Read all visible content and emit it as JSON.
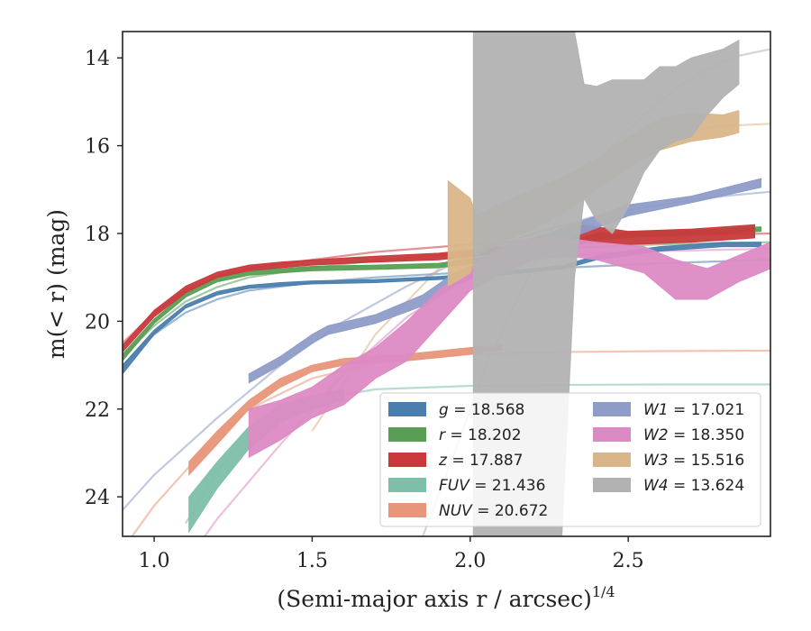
{
  "chart_data": {
    "type": "area",
    "xlabel": "(Semi-major axis r / arcsec)",
    "xlabel_sup": "1/4",
    "ylabel": "m(< r) (mag)",
    "xlim": [
      0.9,
      2.95
    ],
    "ylim": [
      24.9,
      13.4
    ],
    "y_inverted": true,
    "x_ticks": [
      1.0,
      1.5,
      2.0,
      2.5
    ],
    "x_tick_labels": [
      "1.0",
      "1.5",
      "2.0",
      "2.5"
    ],
    "y_ticks": [
      14,
      16,
      18,
      20,
      22,
      24
    ],
    "y_tick_labels": [
      "14",
      "16",
      "18",
      "20",
      "22",
      "24"
    ],
    "grid": false,
    "legend_position": "lower-right",
    "series": [
      {
        "name": "g",
        "legend_value": "18.568",
        "color": "#4c7ead",
        "band_x": [
          0.9,
          1.0,
          1.1,
          1.2,
          1.3,
          1.4,
          1.5,
          1.7,
          1.9,
          2.1,
          2.3,
          2.4,
          2.6,
          2.8,
          2.92
        ],
        "band_lower": [
          21.2,
          20.3,
          19.7,
          19.4,
          19.25,
          19.2,
          19.15,
          19.12,
          19.05,
          18.95,
          18.8,
          18.6,
          18.4,
          18.3,
          18.3
        ],
        "band_upper": [
          21.0,
          20.2,
          19.62,
          19.32,
          19.18,
          19.12,
          19.08,
          19.05,
          18.98,
          18.88,
          18.72,
          18.5,
          18.3,
          18.2,
          18.2
        ],
        "model_x": [
          0.9,
          1.0,
          1.1,
          1.2,
          1.3,
          1.5,
          1.7,
          2.0,
          2.3,
          2.6,
          2.95
        ],
        "model_y": [
          21.0,
          20.3,
          19.8,
          19.5,
          19.3,
          19.12,
          19.0,
          18.88,
          18.78,
          18.68,
          18.6
        ]
      },
      {
        "name": "r",
        "legend_value": "18.202",
        "color": "#5a9e55",
        "band_x": [
          0.9,
          1.0,
          1.1,
          1.2,
          1.3,
          1.4,
          1.5,
          1.7,
          1.9,
          2.1,
          2.3,
          2.4,
          2.6,
          2.8,
          2.92
        ],
        "band_lower": [
          20.9,
          20.05,
          19.45,
          19.1,
          18.95,
          18.9,
          18.85,
          18.82,
          18.78,
          18.6,
          18.35,
          18.15,
          18.05,
          18.0,
          17.95
        ],
        "band_upper": [
          20.75,
          19.95,
          19.35,
          19.0,
          18.85,
          18.8,
          18.75,
          18.72,
          18.68,
          18.5,
          18.25,
          18.0,
          17.95,
          17.9,
          17.85
        ],
        "model_x": [
          0.9,
          1.0,
          1.1,
          1.2,
          1.3,
          1.5,
          1.7,
          2.0,
          2.3,
          2.6,
          2.95
        ],
        "model_y": [
          20.8,
          20.1,
          19.55,
          19.22,
          19.0,
          18.78,
          18.62,
          18.45,
          18.33,
          18.25,
          18.2
        ]
      },
      {
        "name": "z",
        "legend_value": "17.887",
        "color": "#c9393c",
        "band_x": [
          0.9,
          1.0,
          1.1,
          1.2,
          1.3,
          1.4,
          1.5,
          1.7,
          1.9,
          2.1,
          2.35,
          2.5,
          2.7,
          2.9
        ],
        "band_lower": [
          20.7,
          19.9,
          19.35,
          19.0,
          18.85,
          18.78,
          18.72,
          18.65,
          18.6,
          18.45,
          18.2,
          18.25,
          18.2,
          18.1
        ],
        "band_upper": [
          20.55,
          19.75,
          19.2,
          18.88,
          18.72,
          18.65,
          18.6,
          18.52,
          18.45,
          18.3,
          17.8,
          17.95,
          17.9,
          17.8
        ],
        "model_x": [
          0.9,
          1.0,
          1.1,
          1.2,
          1.3,
          1.5,
          1.7,
          2.0,
          2.3,
          2.6,
          2.95
        ],
        "model_y": [
          20.5,
          19.8,
          19.3,
          18.98,
          18.8,
          18.6,
          18.42,
          18.25,
          18.12,
          18.05,
          18.0
        ]
      },
      {
        "name": "FUV",
        "legend_value": "21.436",
        "color": "#7dbfa9",
        "band_x": [
          1.11,
          1.2,
          1.3,
          1.4,
          1.5,
          1.6
        ],
        "band_lower": [
          24.8,
          23.8,
          22.9,
          22.3,
          22.0,
          21.8
        ],
        "band_upper": [
          24.0,
          23.2,
          22.4,
          21.9,
          21.7,
          21.55
        ],
        "model_x": [
          1.1,
          1.2,
          1.3,
          1.4,
          1.5,
          1.7,
          2.0,
          2.3,
          2.6,
          2.95
        ],
        "model_y": [
          24.6,
          23.4,
          22.6,
          22.1,
          21.8,
          21.55,
          21.47,
          21.45,
          21.44,
          21.44
        ]
      },
      {
        "name": "NUV",
        "legend_value": "20.672",
        "color": "#e8967a",
        "band_x": [
          1.11,
          1.2,
          1.3,
          1.4,
          1.5,
          1.6,
          1.8,
          2.0,
          2.1
        ],
        "band_lower": [
          23.5,
          22.8,
          22.0,
          21.5,
          21.15,
          21.0,
          20.9,
          20.75,
          20.65
        ],
        "band_upper": [
          23.2,
          22.5,
          21.8,
          21.3,
          21.0,
          20.85,
          20.75,
          20.6,
          20.55
        ],
        "model_x": [
          0.9,
          1.0,
          1.1,
          1.2,
          1.3,
          1.5,
          1.7,
          2.0,
          2.3,
          2.6,
          2.95
        ],
        "model_y": [
          25.2,
          24.2,
          23.4,
          22.6,
          22.0,
          21.3,
          20.95,
          20.75,
          20.7,
          20.68,
          20.67
        ]
      },
      {
        "name": "W1",
        "legend_value": "17.021",
        "color": "#8e9cc8",
        "band_x": [
          1.3,
          1.4,
          1.5,
          1.55,
          1.7,
          1.85,
          1.95,
          2.1,
          2.3,
          2.5,
          2.7,
          2.92
        ],
        "band_lower": [
          21.4,
          21.0,
          20.5,
          20.3,
          20.05,
          19.65,
          19.2,
          18.75,
          18.15,
          17.6,
          17.3,
          16.95
        ],
        "band_upper": [
          21.2,
          20.8,
          20.3,
          20.1,
          19.85,
          19.4,
          18.9,
          18.45,
          17.85,
          17.35,
          17.15,
          16.75
        ],
        "model_x": [
          0.9,
          1.0,
          1.2,
          1.4,
          1.6,
          1.8,
          2.0,
          2.2,
          2.4,
          2.6,
          2.8,
          2.95
        ],
        "model_y": [
          24.3,
          23.5,
          22.2,
          21.0,
          20.0,
          19.2,
          18.5,
          18.0,
          17.6,
          17.35,
          17.15,
          17.05
        ]
      },
      {
        "name": "W2",
        "legend_value": "18.350",
        "color": "#dc8ac4",
        "band_x": [
          1.3,
          1.4,
          1.5,
          1.6,
          1.7,
          1.8,
          1.9,
          2.0,
          2.1,
          2.2,
          2.3,
          2.4,
          2.55,
          2.65,
          2.75,
          2.85,
          2.95
        ],
        "band_lower": [
          23.1,
          22.7,
          22.2,
          21.9,
          21.3,
          20.9,
          20.1,
          19.3,
          18.9,
          18.6,
          18.5,
          18.6,
          18.9,
          19.5,
          19.5,
          19.1,
          18.8
        ],
        "band_upper": [
          22.0,
          21.8,
          21.5,
          21.0,
          20.6,
          20.0,
          19.3,
          18.75,
          18.3,
          18.1,
          18.1,
          18.2,
          18.3,
          18.6,
          18.8,
          18.5,
          18.2
        ],
        "model_x": [
          1.0,
          1.2,
          1.4,
          1.6,
          1.8,
          2.0,
          2.2,
          2.4,
          2.6,
          2.8,
          2.95
        ],
        "model_y": [
          26.5,
          24.5,
          22.8,
          21.2,
          19.9,
          19.0,
          18.6,
          18.45,
          18.4,
          18.37,
          18.35
        ]
      },
      {
        "name": "W3",
        "legend_value": "15.516",
        "color": "#d9b689",
        "band_x": [
          1.93,
          2.0,
          2.02,
          2.1,
          2.2,
          2.3,
          2.4,
          2.5,
          2.6,
          2.7,
          2.8,
          2.85
        ],
        "band_lower": [
          19.2,
          18.9,
          18.5,
          18.2,
          17.9,
          17.5,
          17.0,
          16.5,
          16.1,
          15.9,
          15.8,
          15.7
        ],
        "band_upper": [
          16.8,
          17.2,
          17.6,
          17.3,
          17.0,
          16.7,
          16.3,
          15.8,
          15.4,
          15.25,
          15.3,
          15.2
        ],
        "model_x": [
          1.5,
          1.7,
          1.9,
          2.0,
          2.1,
          2.2,
          2.3,
          2.4,
          2.5,
          2.6,
          2.7,
          2.8,
          2.95
        ],
        "model_y": [
          22.5,
          20.3,
          18.8,
          18.2,
          17.7,
          17.2,
          16.8,
          16.4,
          16.1,
          15.85,
          15.65,
          15.55,
          15.5
        ]
      },
      {
        "name": "W4",
        "legend_value": "13.624",
        "color": "#b2b2b2",
        "band_x": [
          2.01,
          2.05,
          2.1,
          2.2,
          2.29,
          2.33,
          2.36,
          2.4,
          2.45,
          2.5,
          2.55,
          2.6,
          2.65,
          2.7,
          2.75,
          2.8,
          2.85
        ],
        "band_lower": [
          24.9,
          24.9,
          24.9,
          24.9,
          24.9,
          19.0,
          17.2,
          17.7,
          18.0,
          17.4,
          16.6,
          16.1,
          15.9,
          15.8,
          15.3,
          14.9,
          14.6
        ],
        "band_upper": [
          13.4,
          13.4,
          13.4,
          13.4,
          13.4,
          13.4,
          14.6,
          14.65,
          14.5,
          14.5,
          14.5,
          14.2,
          14.2,
          14.0,
          13.9,
          13.8,
          13.6
        ],
        "model_x": [
          1.85,
          1.95,
          2.05,
          2.15,
          2.25,
          2.35,
          2.45,
          2.55,
          2.65,
          2.75,
          2.85,
          2.95
        ],
        "model_y": [
          24.9,
          23.0,
          21.0,
          19.5,
          18.0,
          16.9,
          16.0,
          15.3,
          14.7,
          14.25,
          13.95,
          13.8
        ]
      }
    ]
  }
}
